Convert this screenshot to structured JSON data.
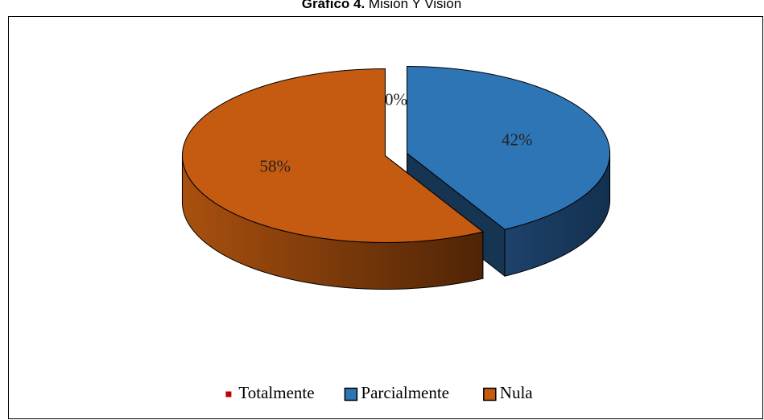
{
  "chart_data": {
    "type": "pie3d",
    "title": {
      "prefix": "Gráfico 4.",
      "text": "Misión Y Visión"
    },
    "categories": [
      "Totalmente",
      "Parcialmente",
      "Nula"
    ],
    "values": [
      0,
      42,
      58
    ],
    "value_labels": [
      "0%",
      "42%",
      "58%"
    ],
    "colors": [
      "#c00000",
      "#2e75b6",
      "#c55a11"
    ],
    "legend": "bottom"
  }
}
